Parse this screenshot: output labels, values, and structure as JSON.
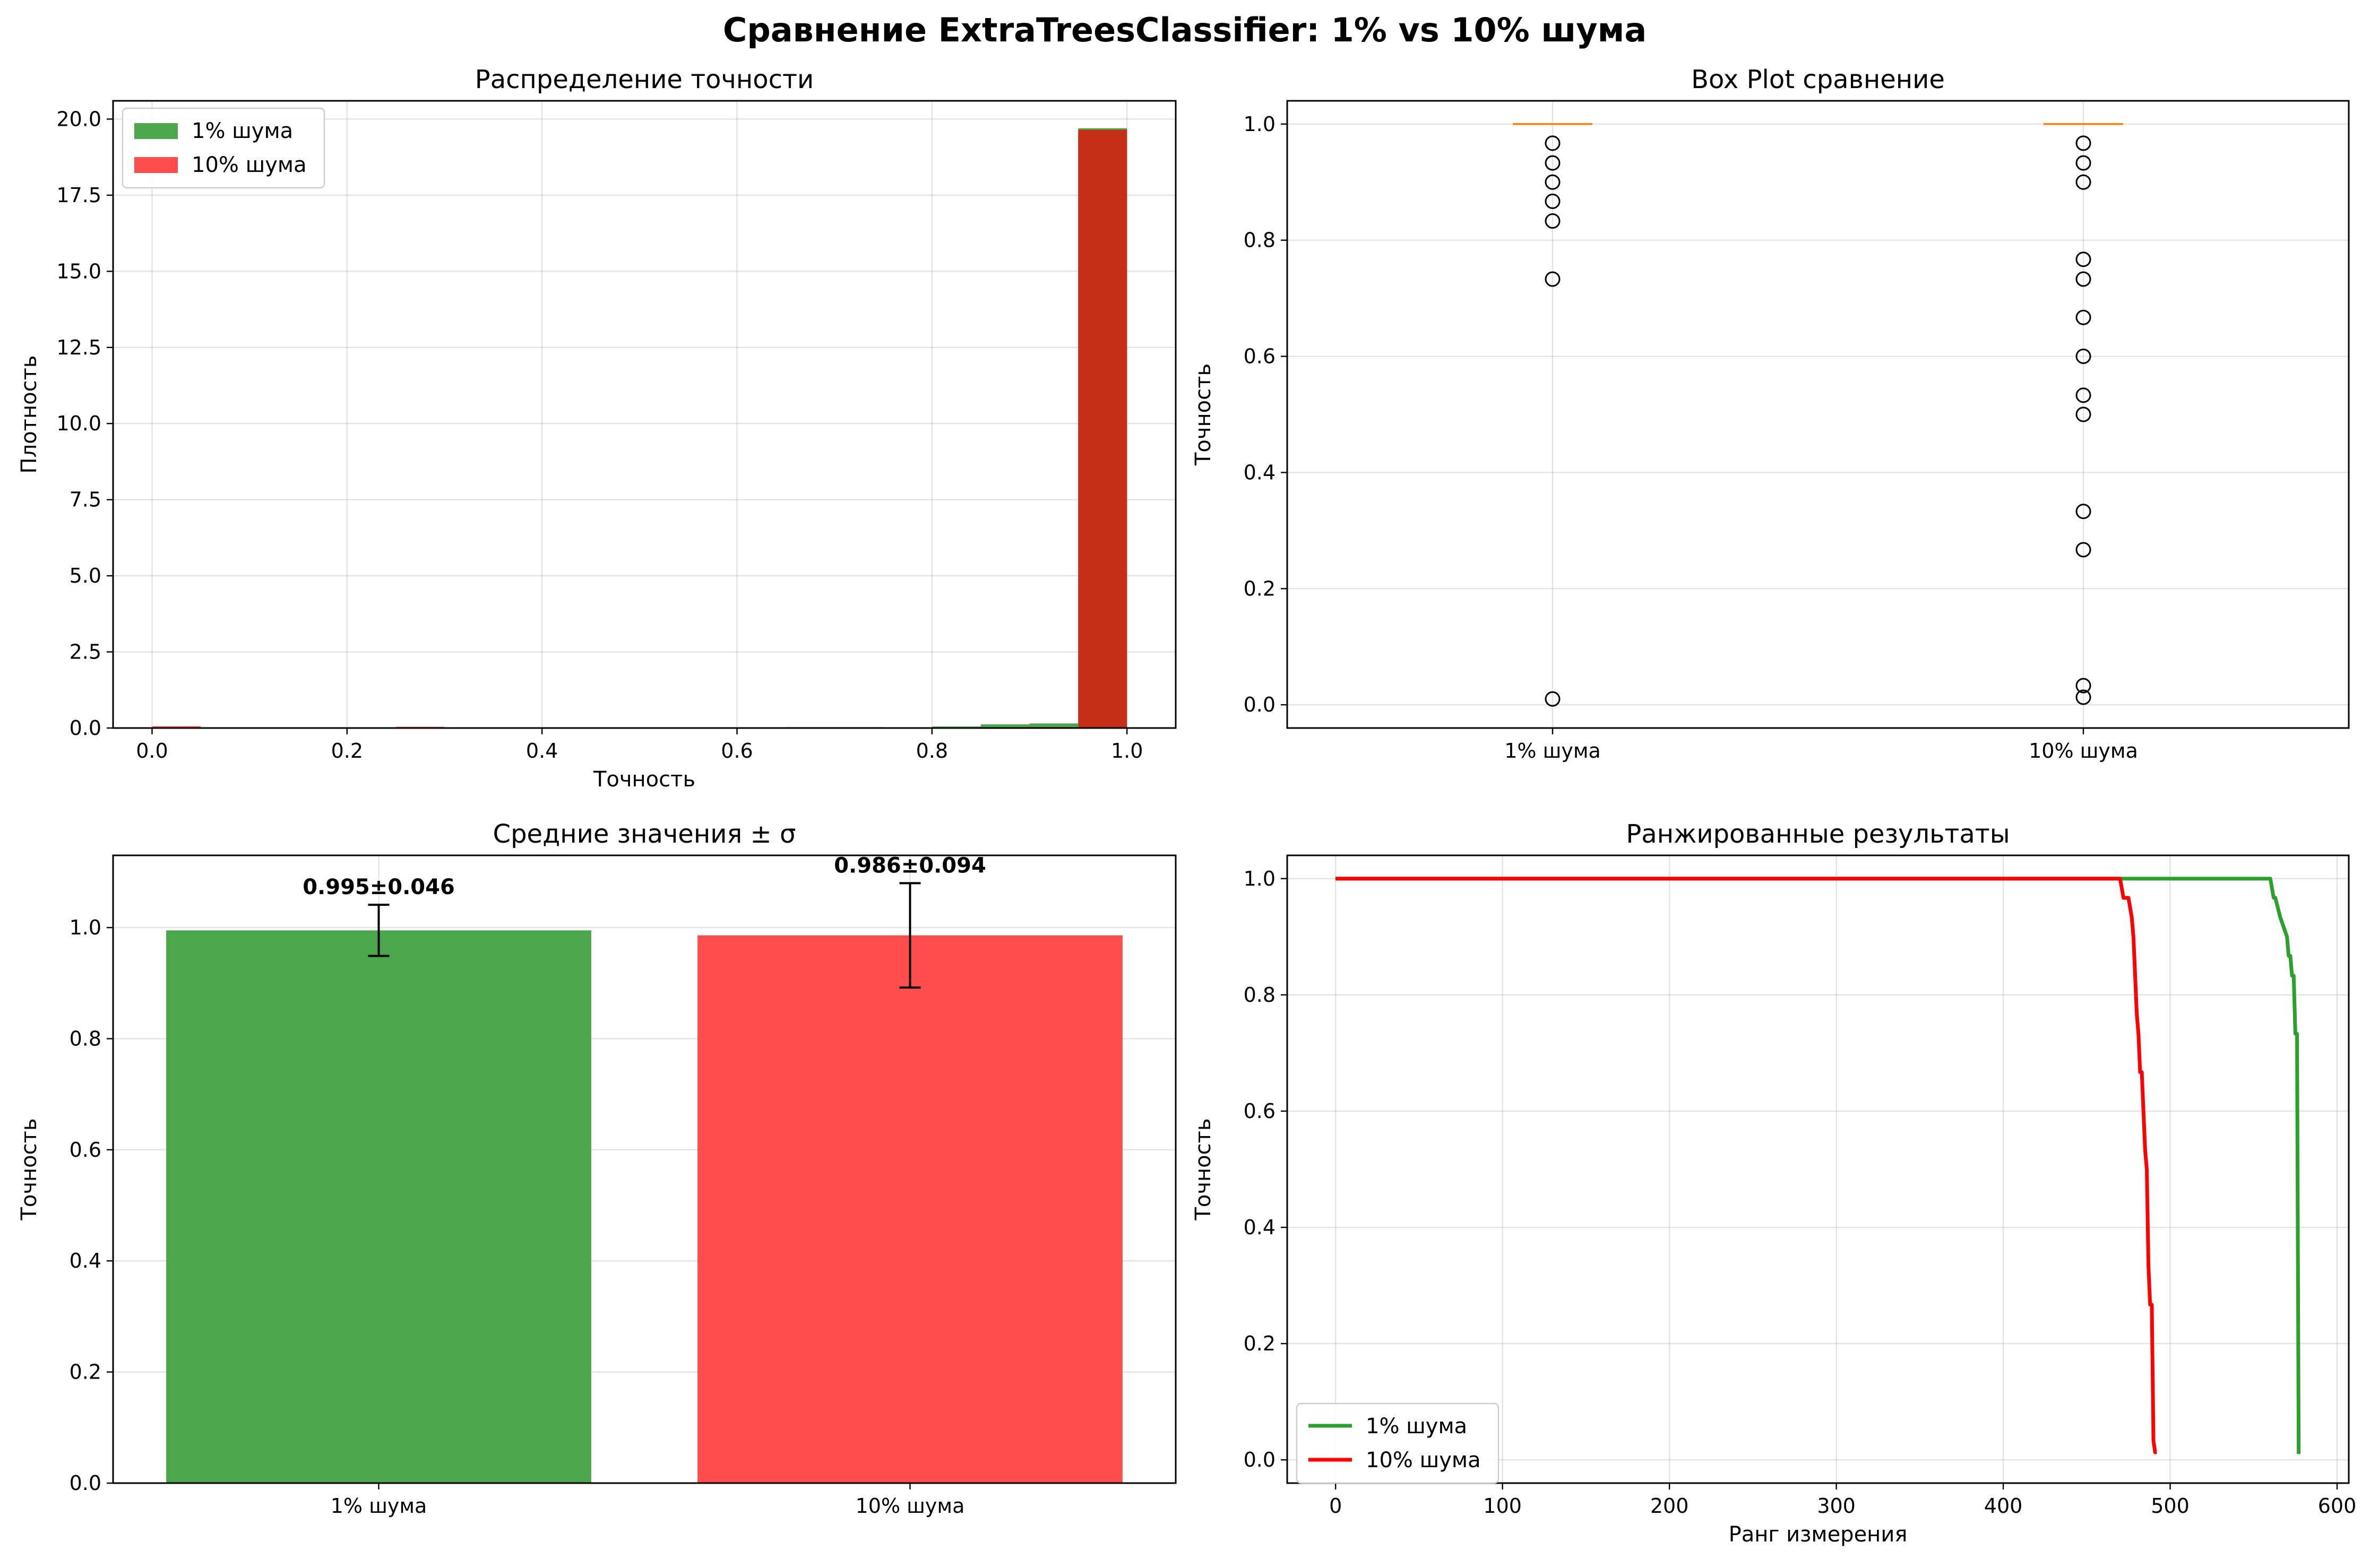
{
  "figure": {
    "title": "Сравнение ExtraTreesClassifier: 1% vs 10% шума"
  },
  "colors": {
    "green": "#2ca02c",
    "red": "#ff0000",
    "bar_green": "#4ca64c",
    "bar_red": "#ff4c4c",
    "overlap": "#c62f17",
    "median": "#ff7f0e"
  },
  "chart_data": [
    {
      "id": "hist",
      "type": "bar",
      "title": "Распределение точности",
      "xlabel": "Точность",
      "ylabel": "Плотность",
      "xlim": [
        -0.04,
        1.05
      ],
      "ylim": [
        0,
        20.6
      ],
      "xticks": [
        "0.0",
        "0.2",
        "0.4",
        "0.6",
        "0.8",
        "1.0"
      ],
      "yticks": [
        "0.0",
        "2.5",
        "5.0",
        "7.5",
        "10.0",
        "12.5",
        "15.0",
        "17.5",
        "20.0"
      ],
      "grid": true,
      "legend": "top-left",
      "bin_width": 0.05,
      "series": [
        {
          "name": "1% шума",
          "bins": [
            0.0,
            0.65,
            0.7,
            0.8,
            0.85,
            0.9,
            0.95
          ],
          "values": [
            0.03,
            0.03,
            0.03,
            0.05,
            0.12,
            0.15,
            19.7
          ]
        },
        {
          "name": "10% шума",
          "bins": [
            0.0,
            0.25,
            0.3,
            0.5,
            0.55,
            0.6,
            0.65,
            0.7,
            0.75,
            0.9,
            0.95
          ],
          "values": [
            0.06,
            0.04,
            0.02,
            0.02,
            0.02,
            0.02,
            0.02,
            0.02,
            0.02,
            0.03,
            19.65
          ]
        }
      ]
    },
    {
      "id": "box",
      "type": "box",
      "title": "Box Plot сравнение",
      "ylabel": "Точность",
      "categories": [
        "1% шума",
        "10% шума"
      ],
      "ylim": [
        -0.04,
        1.04
      ],
      "yticks": [
        "0.0",
        "0.2",
        "0.4",
        "0.6",
        "0.8",
        "1.0"
      ],
      "grid": true,
      "series": [
        {
          "name": "1% шума",
          "median": 1.0,
          "outliers": [
            0.967,
            0.933,
            0.9,
            0.867,
            0.833,
            0.733,
            0.01
          ]
        },
        {
          "name": "10% шума",
          "median": 1.0,
          "outliers": [
            0.967,
            0.933,
            0.9,
            0.767,
            0.733,
            0.667,
            0.6,
            0.533,
            0.5,
            0.333,
            0.267,
            0.033,
            0.013
          ]
        }
      ]
    },
    {
      "id": "means",
      "type": "bar",
      "title": "Средние значения ± σ",
      "ylabel": "Точность",
      "categories": [
        "1% шума",
        "10% шума"
      ],
      "ylim": [
        0,
        1.13
      ],
      "yticks": [
        "0.0",
        "0.2",
        "0.4",
        "0.6",
        "0.8",
        "1.0"
      ],
      "grid": true,
      "values": [
        0.995,
        0.986
      ],
      "errors": [
        0.046,
        0.094
      ],
      "labels": [
        "0.995±0.046",
        "0.986±0.094"
      ]
    },
    {
      "id": "ranked",
      "type": "line",
      "title": "Ранжированные результаты",
      "xlabel": "Ранг измерения",
      "ylabel": "Точность",
      "xlim": [
        -29,
        607
      ],
      "ylim": [
        -0.04,
        1.04
      ],
      "xticks": [
        "0",
        "100",
        "200",
        "300",
        "400",
        "500",
        "600"
      ],
      "yticks": [
        "0.0",
        "0.2",
        "0.4",
        "0.6",
        "0.8",
        "1.0"
      ],
      "grid": true,
      "legend": "bottom-left",
      "series": [
        {
          "name": "1% шума",
          "x": [
            0,
            560,
            562,
            563,
            566,
            570,
            571,
            572,
            573,
            574,
            575,
            576,
            577
          ],
          "y": [
            1.0,
            1.0,
            0.967,
            0.967,
            0.933,
            0.9,
            0.867,
            0.867,
            0.833,
            0.833,
            0.733,
            0.733,
            0.01
          ]
        },
        {
          "name": "10% шума",
          "x": [
            0,
            470,
            472,
            475,
            477,
            478,
            480,
            481,
            482,
            483,
            485,
            486,
            487,
            488,
            489,
            490,
            491,
            492
          ],
          "y": [
            1.0,
            1.0,
            0.967,
            0.967,
            0.933,
            0.9,
            0.767,
            0.733,
            0.667,
            0.667,
            0.533,
            0.5,
            0.333,
            0.267,
            0.267,
            0.033,
            0.013,
            0.013
          ]
        }
      ]
    }
  ]
}
